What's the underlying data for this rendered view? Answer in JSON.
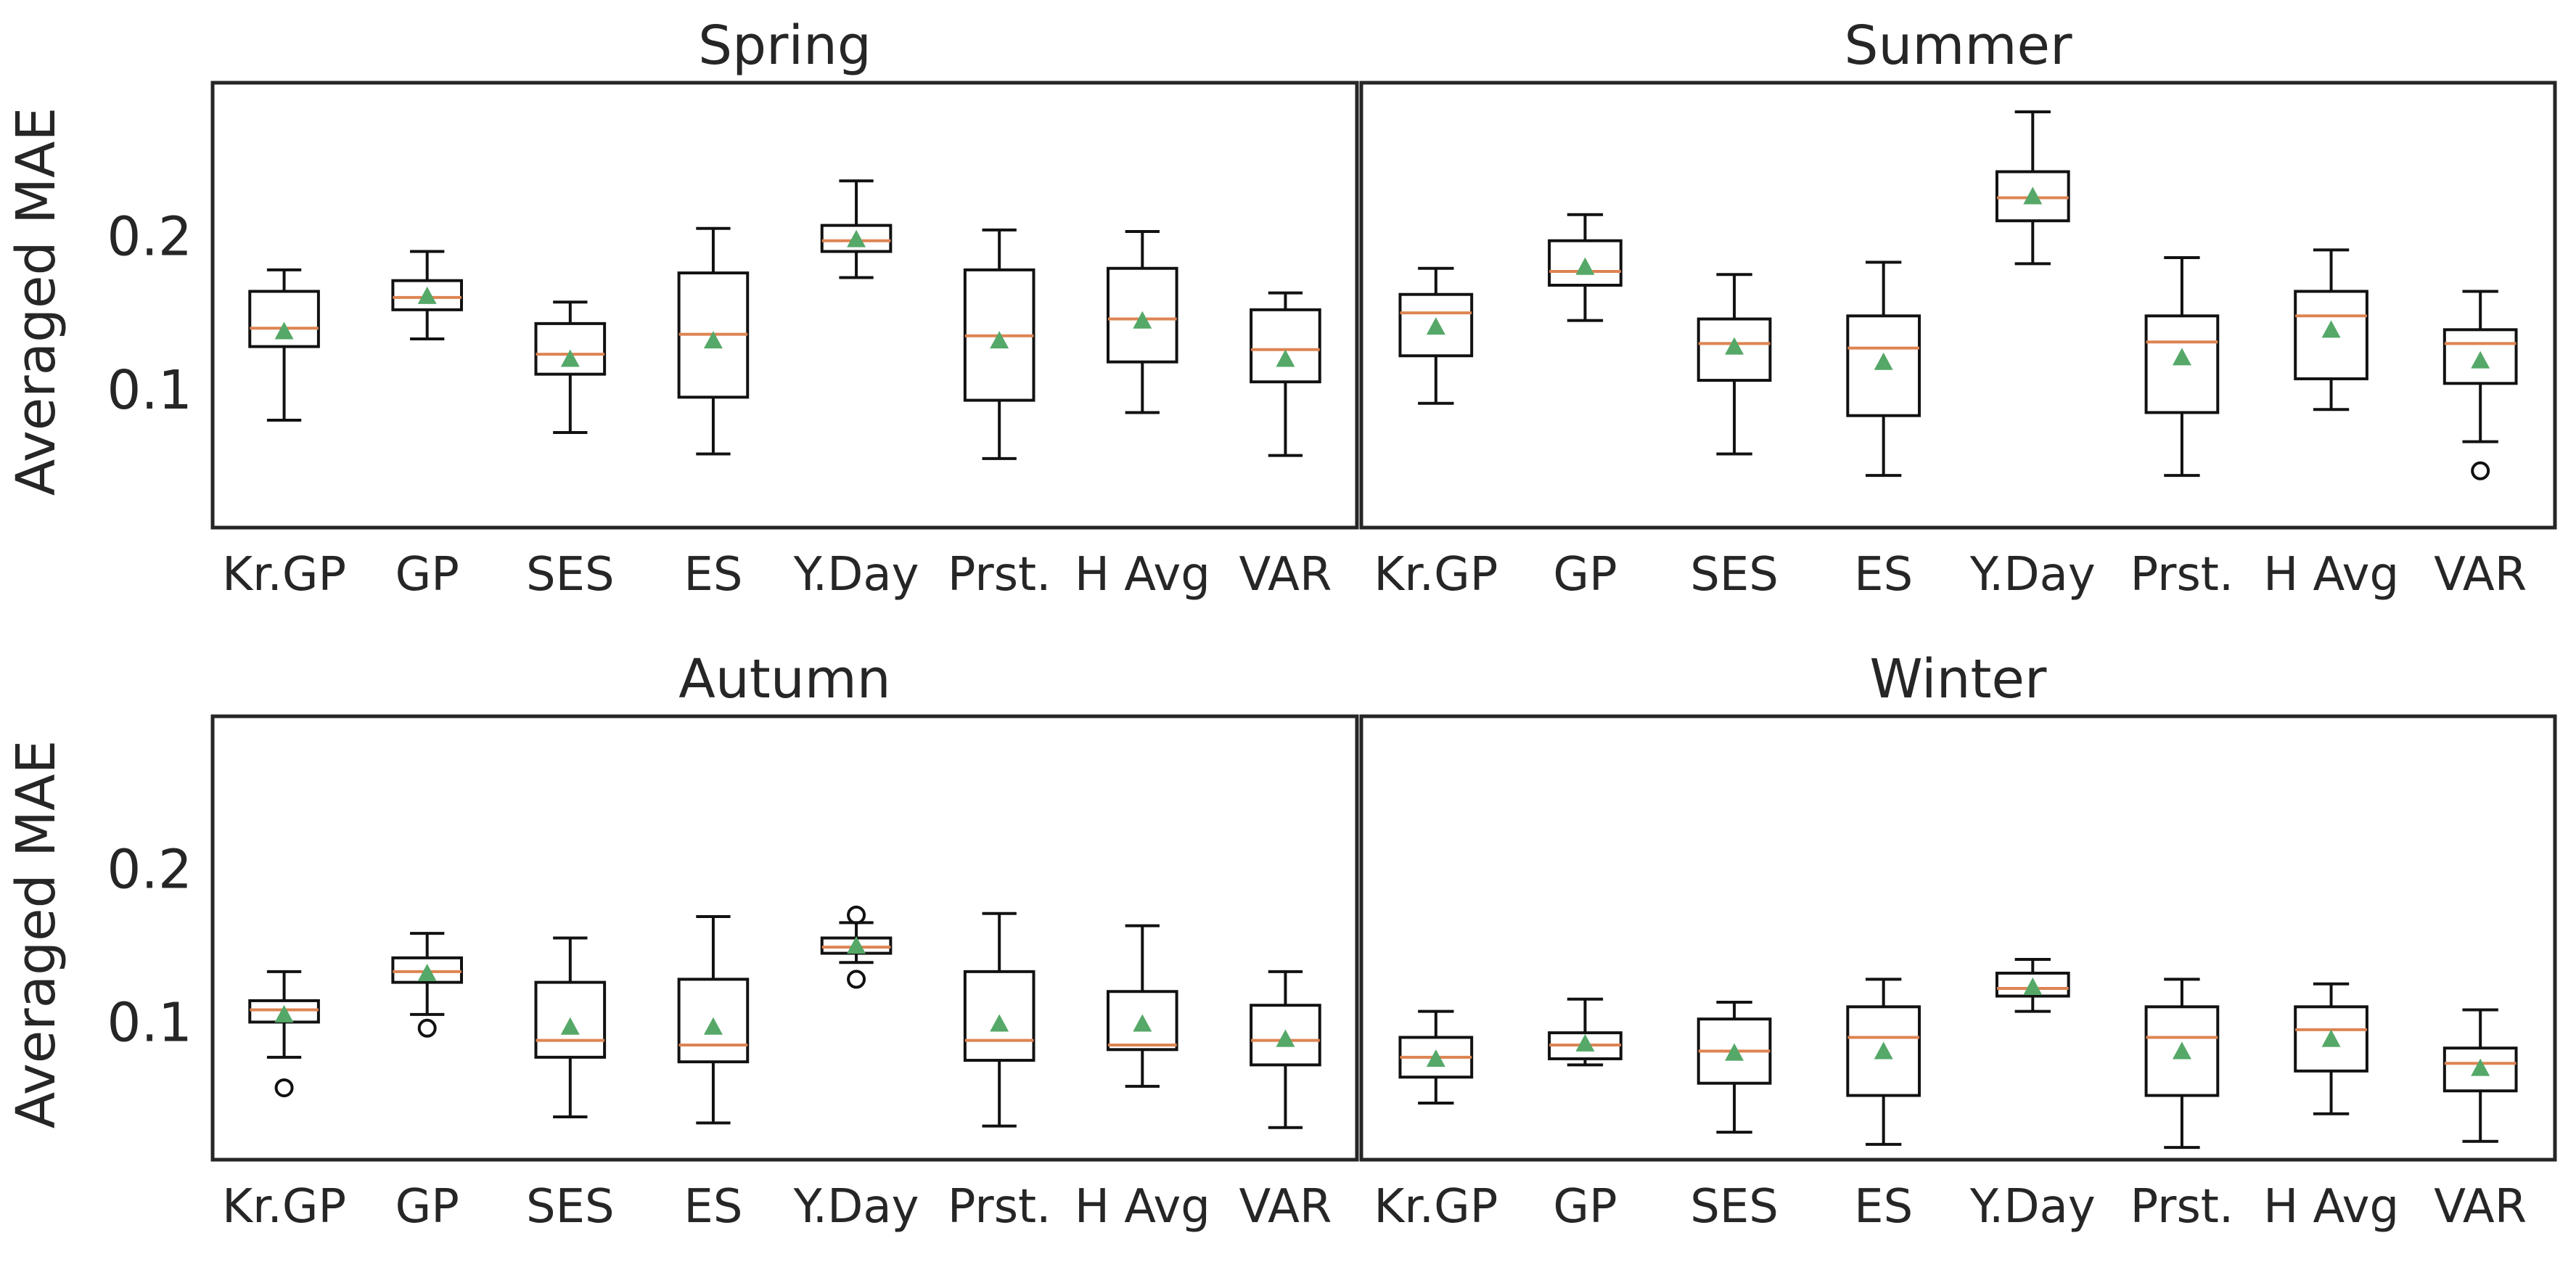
{
  "colors": {
    "median": "#dd8452",
    "mean": "#55a868",
    "box": "#111111",
    "text": "#262626"
  },
  "chart_data": [
    {
      "type": "box",
      "title": "Spring",
      "ylabel": "Averaged MAE",
      "yticks": [
        0.1,
        0.2
      ],
      "ylim": [
        0.01,
        0.3
      ],
      "grid": false,
      "categories": [
        "Kr.GP",
        "GP",
        "SES",
        "ES",
        "Y.Day",
        "Prst.",
        "H Avg",
        "VAR"
      ],
      "boxes": [
        {
          "whislo": 0.08,
          "q1": 0.128,
          "med": 0.14,
          "q3": 0.164,
          "whishi": 0.178,
          "mean": 0.138,
          "fliers": []
        },
        {
          "whislo": 0.133,
          "q1": 0.152,
          "med": 0.16,
          "q3": 0.171,
          "whishi": 0.19,
          "mean": 0.161,
          "fliers": []
        },
        {
          "whislo": 0.072,
          "q1": 0.11,
          "med": 0.123,
          "q3": 0.143,
          "whishi": 0.157,
          "mean": 0.12,
          "fliers": []
        },
        {
          "whislo": 0.058,
          "q1": 0.095,
          "med": 0.136,
          "q3": 0.176,
          "whishi": 0.205,
          "mean": 0.132,
          "fliers": []
        },
        {
          "whislo": 0.173,
          "q1": 0.19,
          "med": 0.197,
          "q3": 0.207,
          "whishi": 0.236,
          "mean": 0.198,
          "fliers": []
        },
        {
          "whislo": 0.055,
          "q1": 0.093,
          "med": 0.135,
          "q3": 0.178,
          "whishi": 0.204,
          "mean": 0.132,
          "fliers": []
        },
        {
          "whislo": 0.085,
          "q1": 0.118,
          "med": 0.146,
          "q3": 0.179,
          "whishi": 0.203,
          "mean": 0.145,
          "fliers": []
        },
        {
          "whislo": 0.057,
          "q1": 0.105,
          "med": 0.126,
          "q3": 0.152,
          "whishi": 0.163,
          "mean": 0.12,
          "fliers": []
        }
      ]
    },
    {
      "type": "box",
      "title": "Summer",
      "ylabel": "",
      "yticks": [],
      "ylim": [
        0.01,
        0.3
      ],
      "grid": false,
      "categories": [
        "Kr.GP",
        "GP",
        "SES",
        "ES",
        "Y.Day",
        "Prst.",
        "H Avg",
        "VAR"
      ],
      "boxes": [
        {
          "whislo": 0.091,
          "q1": 0.122,
          "med": 0.15,
          "q3": 0.162,
          "whishi": 0.179,
          "mean": 0.141,
          "fliers": []
        },
        {
          "whislo": 0.145,
          "q1": 0.168,
          "med": 0.177,
          "q3": 0.197,
          "whishi": 0.214,
          "mean": 0.18,
          "fliers": []
        },
        {
          "whislo": 0.058,
          "q1": 0.106,
          "med": 0.13,
          "q3": 0.146,
          "whishi": 0.175,
          "mean": 0.128,
          "fliers": []
        },
        {
          "whislo": 0.044,
          "q1": 0.083,
          "med": 0.127,
          "q3": 0.148,
          "whishi": 0.183,
          "mean": 0.118,
          "fliers": []
        },
        {
          "whislo": 0.182,
          "q1": 0.21,
          "med": 0.225,
          "q3": 0.242,
          "whishi": 0.281,
          "mean": 0.226,
          "fliers": []
        },
        {
          "whislo": 0.044,
          "q1": 0.085,
          "med": 0.131,
          "q3": 0.148,
          "whishi": 0.186,
          "mean": 0.121,
          "fliers": []
        },
        {
          "whislo": 0.087,
          "q1": 0.107,
          "med": 0.148,
          "q3": 0.164,
          "whishi": 0.191,
          "mean": 0.139,
          "fliers": []
        },
        {
          "whislo": 0.066,
          "q1": 0.104,
          "med": 0.13,
          "q3": 0.139,
          "whishi": 0.164,
          "mean": 0.119,
          "fliers": [
            0.047
          ]
        }
      ]
    },
    {
      "type": "box",
      "title": "Autumn",
      "ylabel": "Averaged MAE",
      "yticks": [
        0.1,
        0.2
      ],
      "ylim": [
        0.01,
        0.3
      ],
      "grid": false,
      "categories": [
        "Kr.GP",
        "GP",
        "SES",
        "ES",
        "Y.Day",
        "Prst.",
        "H Avg",
        "VAR"
      ],
      "boxes": [
        {
          "whislo": 0.077,
          "q1": 0.1,
          "med": 0.108,
          "q3": 0.114,
          "whishi": 0.133,
          "mean": 0.105,
          "fliers": [
            0.057
          ]
        },
        {
          "whislo": 0.105,
          "q1": 0.126,
          "med": 0.133,
          "q3": 0.142,
          "whishi": 0.158,
          "mean": 0.132,
          "fliers": [
            0.096
          ]
        },
        {
          "whislo": 0.038,
          "q1": 0.077,
          "med": 0.088,
          "q3": 0.126,
          "whishi": 0.155,
          "mean": 0.097,
          "fliers": []
        },
        {
          "whislo": 0.034,
          "q1": 0.074,
          "med": 0.085,
          "q3": 0.128,
          "whishi": 0.169,
          "mean": 0.097,
          "fliers": []
        },
        {
          "whislo": 0.139,
          "q1": 0.145,
          "med": 0.149,
          "q3": 0.155,
          "whishi": 0.165,
          "mean": 0.15,
          "fliers": [
            0.128,
            0.17
          ]
        },
        {
          "whislo": 0.032,
          "q1": 0.075,
          "med": 0.088,
          "q3": 0.133,
          "whishi": 0.171,
          "mean": 0.099,
          "fliers": []
        },
        {
          "whislo": 0.058,
          "q1": 0.082,
          "med": 0.085,
          "q3": 0.12,
          "whishi": 0.163,
          "mean": 0.099,
          "fliers": []
        },
        {
          "whislo": 0.031,
          "q1": 0.072,
          "med": 0.088,
          "q3": 0.111,
          "whishi": 0.133,
          "mean": 0.089,
          "fliers": []
        }
      ]
    },
    {
      "type": "box",
      "title": "Winter",
      "ylabel": "",
      "yticks": [],
      "ylim": [
        0.01,
        0.3
      ],
      "grid": false,
      "categories": [
        "Kr.GP",
        "GP",
        "SES",
        "ES",
        "Y.Day",
        "Prst.",
        "H Avg",
        "VAR"
      ],
      "boxes": [
        {
          "whislo": 0.047,
          "q1": 0.064,
          "med": 0.077,
          "q3": 0.09,
          "whishi": 0.107,
          "mean": 0.076,
          "fliers": []
        },
        {
          "whislo": 0.072,
          "q1": 0.076,
          "med": 0.085,
          "q3": 0.093,
          "whishi": 0.115,
          "mean": 0.086,
          "fliers": []
        },
        {
          "whislo": 0.028,
          "q1": 0.06,
          "med": 0.081,
          "q3": 0.102,
          "whishi": 0.113,
          "mean": 0.08,
          "fliers": []
        },
        {
          "whislo": 0.02,
          "q1": 0.052,
          "med": 0.09,
          "q3": 0.11,
          "whishi": 0.128,
          "mean": 0.081,
          "fliers": []
        },
        {
          "whislo": 0.107,
          "q1": 0.117,
          "med": 0.122,
          "q3": 0.132,
          "whishi": 0.141,
          "mean": 0.123,
          "fliers": []
        },
        {
          "whislo": 0.018,
          "q1": 0.052,
          "med": 0.09,
          "q3": 0.11,
          "whishi": 0.128,
          "mean": 0.081,
          "fliers": []
        },
        {
          "whislo": 0.04,
          "q1": 0.068,
          "med": 0.095,
          "q3": 0.11,
          "whishi": 0.125,
          "mean": 0.089,
          "fliers": []
        },
        {
          "whislo": 0.022,
          "q1": 0.055,
          "med": 0.073,
          "q3": 0.083,
          "whishi": 0.108,
          "mean": 0.07,
          "fliers": []
        }
      ]
    }
  ]
}
